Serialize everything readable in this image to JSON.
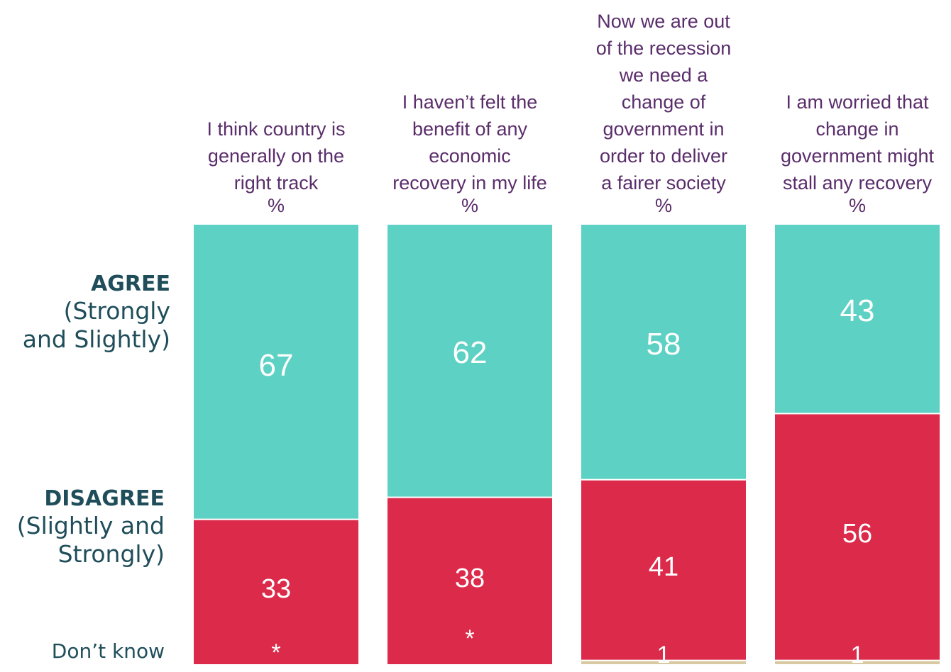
{
  "chart_data": {
    "type": "bar",
    "stacked": true,
    "categories": [
      "I think country is generally on the right track",
      "I haven’t felt the benefit of any economic recovery in my life",
      "Now we are out of the recession we need a change of government in order to deliver a fairer society",
      "I am worried that change in government might stall any recovery"
    ],
    "category_lines": [
      [
        "I think country is",
        "generally on the",
        "right track"
      ],
      [
        "I haven’t felt the",
        "benefit of any",
        "economic",
        "recovery in my life"
      ],
      [
        "Now we are out",
        "of the recession",
        "we need a",
        "change of",
        "government in",
        "order to deliver",
        "a fairer society"
      ],
      [
        "I am worried that",
        "change in",
        "government might",
        "stall any recovery"
      ]
    ],
    "unit_label": "%",
    "series": [
      {
        "key": "agree",
        "values": [
          67,
          62,
          58,
          43
        ],
        "labels": [
          "67",
          "62",
          "58",
          "43"
        ],
        "color": "#5dd1c3"
      },
      {
        "key": "disagree",
        "values": [
          33,
          38,
          41,
          56
        ],
        "labels": [
          "33",
          "38",
          "41",
          "56"
        ],
        "color": "#dc2a4a"
      },
      {
        "key": "dontknow",
        "values": [
          0,
          0,
          1,
          1
        ],
        "labels": [
          "*",
          "*",
          "1",
          "1"
        ],
        "color": "#d9c9a3"
      }
    ],
    "ylim": [
      0,
      100
    ]
  },
  "row_labels": {
    "agree_strong": "AGREE",
    "agree_sub": "(Strongly and Slightly)",
    "disagree_strong": "DISAGREE",
    "disagree_sub": "(Slightly and Strongly)",
    "dontknow": "Don’t know"
  }
}
